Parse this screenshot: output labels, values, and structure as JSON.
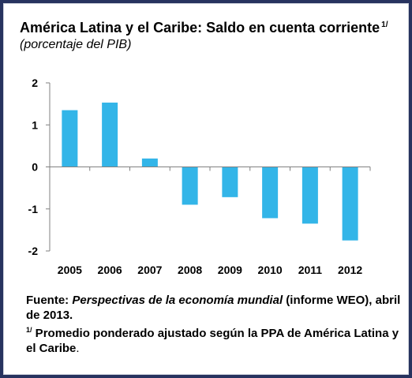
{
  "chart_data": {
    "type": "bar",
    "title": "América Latina y el Caribe: Saldo en cuenta corriente",
    "title_note_mark": "1/",
    "subtitle": "(porcentaje del PIB)",
    "xlabel": "",
    "ylabel": "",
    "categories": [
      "2005",
      "2006",
      "2007",
      "2008",
      "2009",
      "2010",
      "2011",
      "2012"
    ],
    "values": [
      1.35,
      1.53,
      0.2,
      -0.9,
      -0.72,
      -1.22,
      -1.35,
      -1.75
    ],
    "ylim": [
      -2,
      2
    ],
    "yticks": [
      "2",
      "1",
      "0",
      "-1",
      "-2"
    ],
    "grid": false,
    "legend": "none",
    "colors": {
      "bar": "#33b5e8",
      "background": "#27335f",
      "panel": "#ffffff",
      "axis": "#808080"
    }
  },
  "notes": {
    "source_prefix": "Fuente: ",
    "source_title": "Perspectivas de la economía mundial",
    "source_suffix": " (informe WEO), abril de 2013.",
    "footnote_mark": "1/",
    "footnote_text": " Promedio ponderado ajustado según la PPA de América Latina y el Caribe",
    "footnote_end": "."
  }
}
